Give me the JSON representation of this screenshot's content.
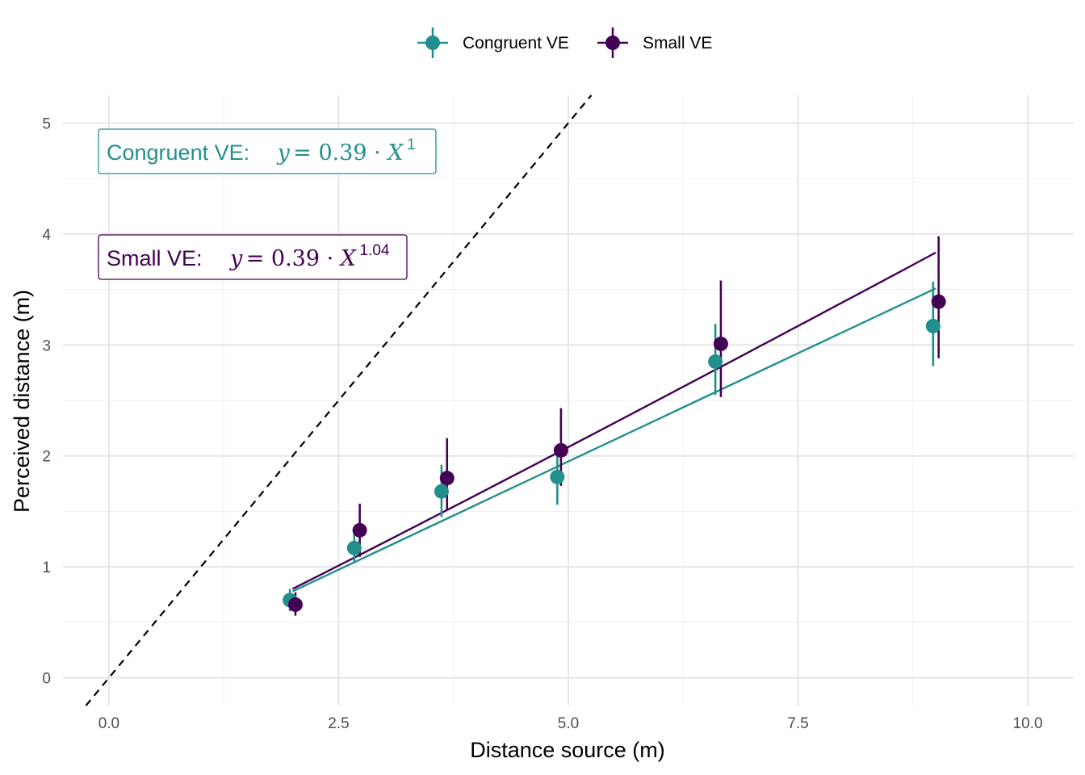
{
  "chart_data": {
    "type": "scatter",
    "xlabel": "Distance source (m)",
    "ylabel": "Perceived distance (m)",
    "xlim": [
      -0.5,
      10.5
    ],
    "ylim": [
      -0.25,
      5.25
    ],
    "xticks": [
      0.0,
      2.5,
      5.0,
      7.5,
      10.0
    ],
    "xtick_labels": [
      "0.0",
      "2.5",
      "5.0",
      "7.5",
      "10.0"
    ],
    "yticks": [
      0,
      1,
      2,
      3,
      4,
      5
    ],
    "ytick_labels": [
      "0",
      "1",
      "2",
      "3",
      "4",
      "5"
    ],
    "grid": true,
    "legend_position": "top",
    "reference_line": {
      "style": "dashed",
      "color": "#000000"
    },
    "series": [
      {
        "name": "Congruent VE",
        "color": "#21908C",
        "points": [
          {
            "x": 1.97,
            "y": 0.7,
            "ylow": 0.6,
            "yhigh": 0.8
          },
          {
            "x": 2.67,
            "y": 1.17,
            "ylow": 1.03,
            "yhigh": 1.31
          },
          {
            "x": 3.62,
            "y": 1.68,
            "ylow": 1.45,
            "yhigh": 1.92
          },
          {
            "x": 4.88,
            "y": 1.81,
            "ylow": 1.56,
            "yhigh": 2.06
          },
          {
            "x": 6.6,
            "y": 2.85,
            "ylow": 2.55,
            "yhigh": 3.19
          },
          {
            "x": 8.97,
            "y": 3.17,
            "ylow": 2.81,
            "yhigh": 3.57
          }
        ],
        "fit": {
          "coef": 0.39,
          "exponent": 1.0,
          "x_from": 2.0,
          "x_to": 9.0
        },
        "annotation": {
          "label": "Congruent VE:",
          "lhs": "y",
          "eq": " = 0.39 · ",
          "var": "X",
          "exp": "1"
        }
      },
      {
        "name": "Small VE",
        "color": "#440154",
        "points": [
          {
            "x": 2.03,
            "y": 0.66,
            "ylow": 0.56,
            "yhigh": 0.77
          },
          {
            "x": 2.73,
            "y": 1.33,
            "ylow": 1.09,
            "yhigh": 1.57
          },
          {
            "x": 3.68,
            "y": 1.8,
            "ylow": 1.51,
            "yhigh": 2.16
          },
          {
            "x": 4.92,
            "y": 2.05,
            "ylow": 1.73,
            "yhigh": 2.43
          },
          {
            "x": 6.66,
            "y": 3.01,
            "ylow": 2.53,
            "yhigh": 3.58
          },
          {
            "x": 9.03,
            "y": 3.39,
            "ylow": 2.88,
            "yhigh": 3.98
          }
        ],
        "fit": {
          "coef": 0.39,
          "exponent": 1.04,
          "x_from": 2.0,
          "x_to": 9.0
        },
        "annotation": {
          "label": "Small VE:",
          "lhs": "y",
          "eq": " = 0.39 · ",
          "var": "X",
          "exp": "1.04"
        }
      }
    ]
  }
}
